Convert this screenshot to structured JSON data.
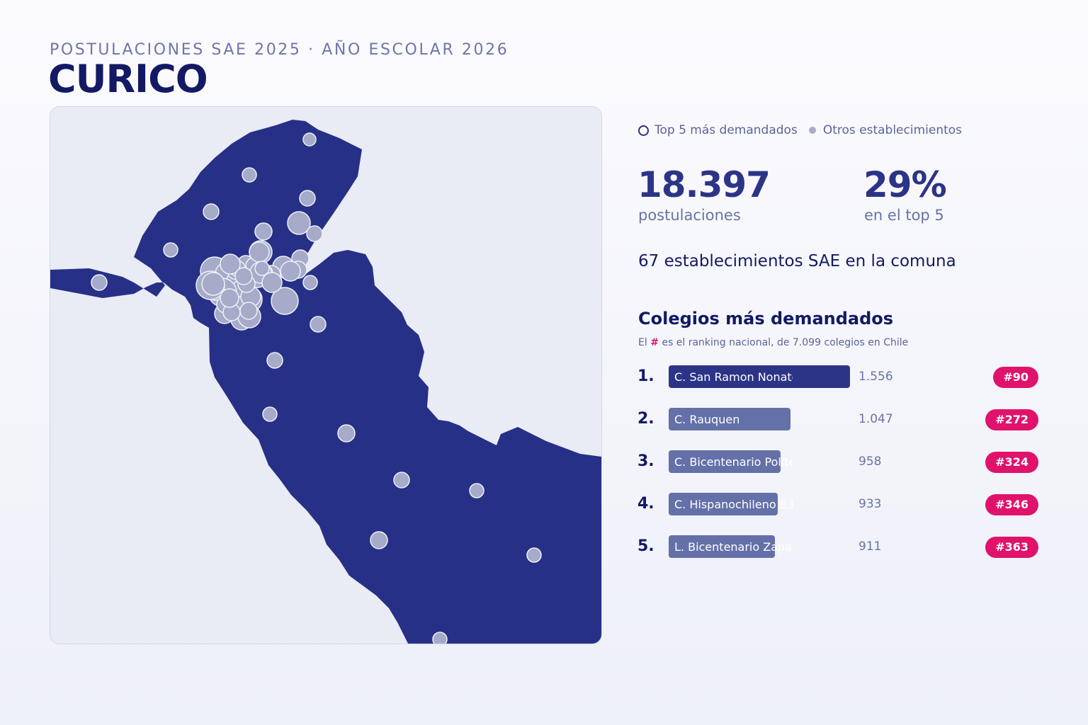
{
  "header": {
    "subtitle": "POSTULACIONES SAE 2025 · AÑO ESCOLAR 2026",
    "title": "CURICO"
  },
  "legend": {
    "top5_label": "Top 5 más demandados",
    "others_label": "Otros establecimientos"
  },
  "stats": {
    "total_value": "18.397",
    "total_label": "postulaciones",
    "top5_share_value": "29%",
    "top5_share_label": "en el top 5",
    "schools_line": "67 establecimientos SAE en la comuna"
  },
  "ranking": {
    "title": "Colegios más demandados",
    "note_prefix": "El",
    "note_symbol": "#",
    "note_suffix": "es el ranking nacional, de 7.099 colegios en Chile",
    "items": [
      {
        "rank": "1.",
        "name": "C. San Ramon Nonato",
        "value": "1.556",
        "applications": 1556,
        "badge": "#90"
      },
      {
        "rank": "2.",
        "name": "C. Rauquen",
        "value": "1.047",
        "applications": 1047,
        "badge": "#272"
      },
      {
        "rank": "3.",
        "name": "C. Bicentenario Politecnico",
        "value": "958",
        "applications": 958,
        "badge": "#324"
      },
      {
        "rank": "4.",
        "name": "C. Hispanochileno E.P.",
        "value": "933",
        "applications": 933,
        "badge": "#346"
      },
      {
        "rank": "5.",
        "name": "L. Bicentenario Zapallar",
        "value": "911",
        "applications": 911,
        "badge": "#363"
      }
    ]
  },
  "colors": {
    "commune_fill": "#273087",
    "map_background": "#e9ecf5",
    "school_marker": "#a6abc9",
    "top_bar": "#2c3487",
    "other_bar": "#6470a8",
    "badge": "#e0126b"
  }
}
